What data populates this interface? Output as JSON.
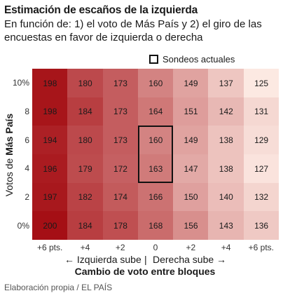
{
  "title": "Estimación de escaños de la izquierda",
  "subtitle": "En función de: 1) el voto de Más País y 2) el giro de las encuestas en favor de izquierda o derecha",
  "legend": {
    "label": "Sondeos actuales"
  },
  "ylabel": {
    "prefix": "Votos de ",
    "bold": "Más País"
  },
  "directions": {
    "left": "← Izquierda sube",
    "separator": "|",
    "right": "Derecha sube →"
  },
  "xlabel": "Cambio de voto entre bloques",
  "source": "Elaboración propia / EL PAÍS",
  "colors": {
    "low": "#fce9e2",
    "high": "#a50f15",
    "border": "#111111"
  },
  "chart_data": {
    "type": "heatmap",
    "title": "Estimación de escaños de la izquierda",
    "xlabel": "Cambio de voto entre bloques",
    "ylabel": "Votos de Más País",
    "x_tick_labels": [
      "+6 pts.",
      "+4",
      "+2",
      "0",
      "+2",
      "+4",
      "+6 pts."
    ],
    "y_tick_labels": [
      "10%",
      "8",
      "6",
      "4",
      "2",
      "0%"
    ],
    "values": [
      [
        198,
        180,
        173,
        160,
        149,
        137,
        125
      ],
      [
        198,
        184,
        173,
        164,
        151,
        142,
        131
      ],
      [
        194,
        180,
        173,
        160,
        149,
        138,
        129
      ],
      [
        196,
        179,
        172,
        163,
        147,
        138,
        127
      ],
      [
        197,
        182,
        174,
        166,
        150,
        140,
        132
      ],
      [
        200,
        184,
        178,
        168,
        156,
        143,
        136
      ]
    ],
    "highlight": {
      "column": 3,
      "rows": [
        2,
        3
      ],
      "label": "Sondeos actuales"
    },
    "value_range": [
      125,
      200
    ]
  }
}
